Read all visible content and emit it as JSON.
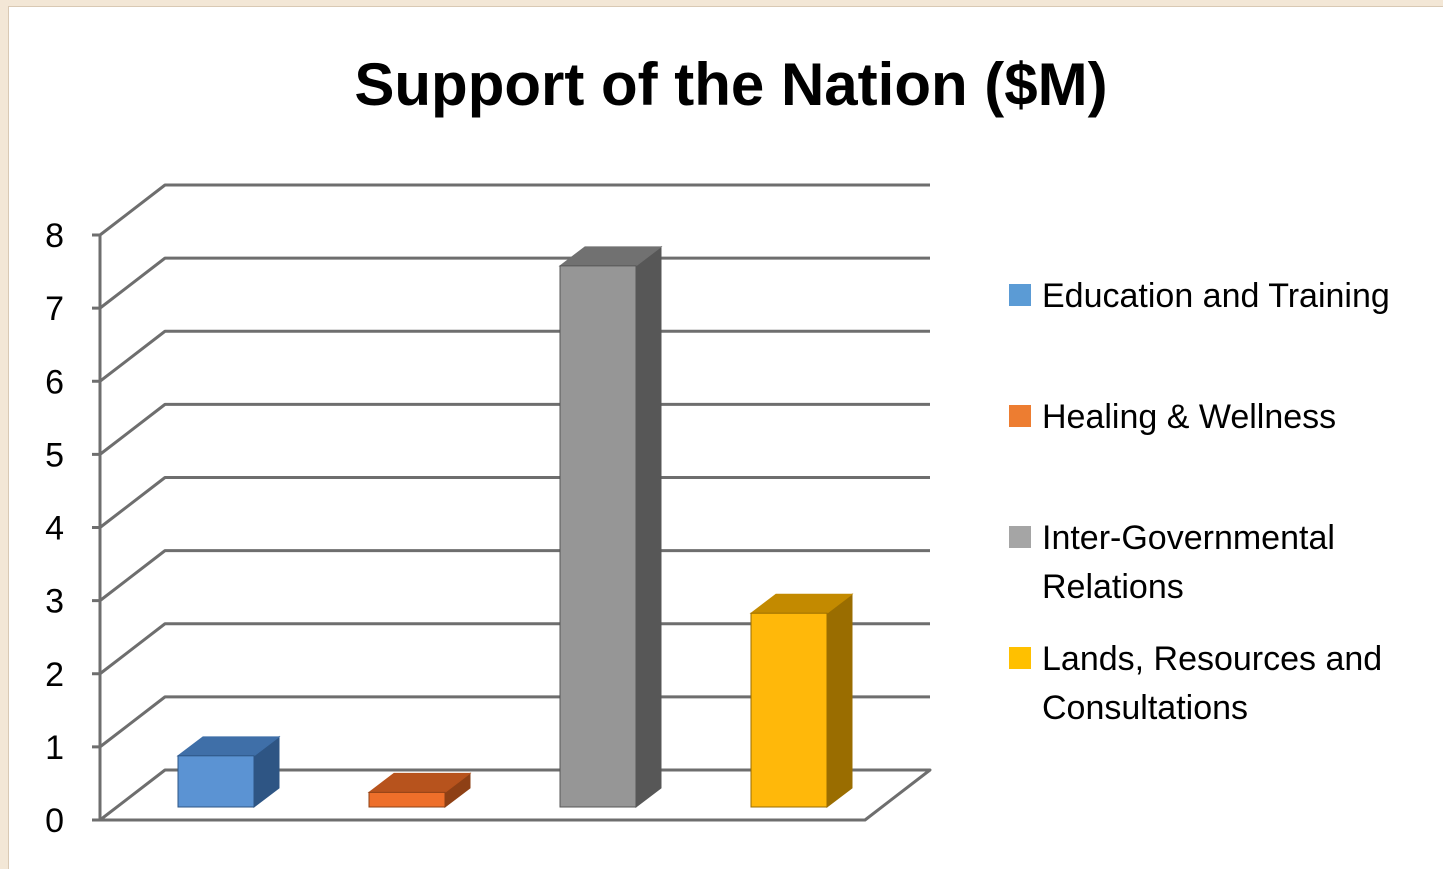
{
  "chart_data": {
    "type": "bar",
    "title": "Support of the Nation ($M)",
    "categories": [
      "Education and Training",
      "Healing & Wellness",
      "Inter-Governmental Relations",
      "Lands, Resources and Consultations"
    ],
    "values": [
      0.7,
      0.2,
      7.4,
      2.65
    ],
    "ylim": [
      0,
      8
    ],
    "yticks": [
      "0",
      "1",
      "2",
      "3",
      "4",
      "5",
      "6",
      "7",
      "8"
    ],
    "grid": true,
    "legend_position": "right",
    "legend": [
      {
        "label_lines": [
          "Education and Training"
        ],
        "color": "#5b9bd5"
      },
      {
        "label_lines": [
          "Healing & Wellness"
        ],
        "color": "#ed7d31"
      },
      {
        "label_lines": [
          "Inter-Governmental",
          "Relations"
        ],
        "color": "#a5a5a5"
      },
      {
        "label_lines": [
          "Lands, Resources and",
          "Consultations"
        ],
        "color": "#ffc000"
      }
    ],
    "colors": {
      "bars": [
        {
          "front": "#5b93d3",
          "top": "#3f6fa8",
          "side": "#2e5584"
        },
        {
          "front": "#ee6f2a",
          "top": "#b7531d",
          "side": "#8e4015"
        },
        {
          "front": "#969696",
          "top": "#717171",
          "side": "#575757"
        },
        {
          "front": "#ffb80a",
          "top": "#c38a00",
          "side": "#9a6d00"
        }
      ],
      "grid": "#6e6e6e"
    }
  }
}
